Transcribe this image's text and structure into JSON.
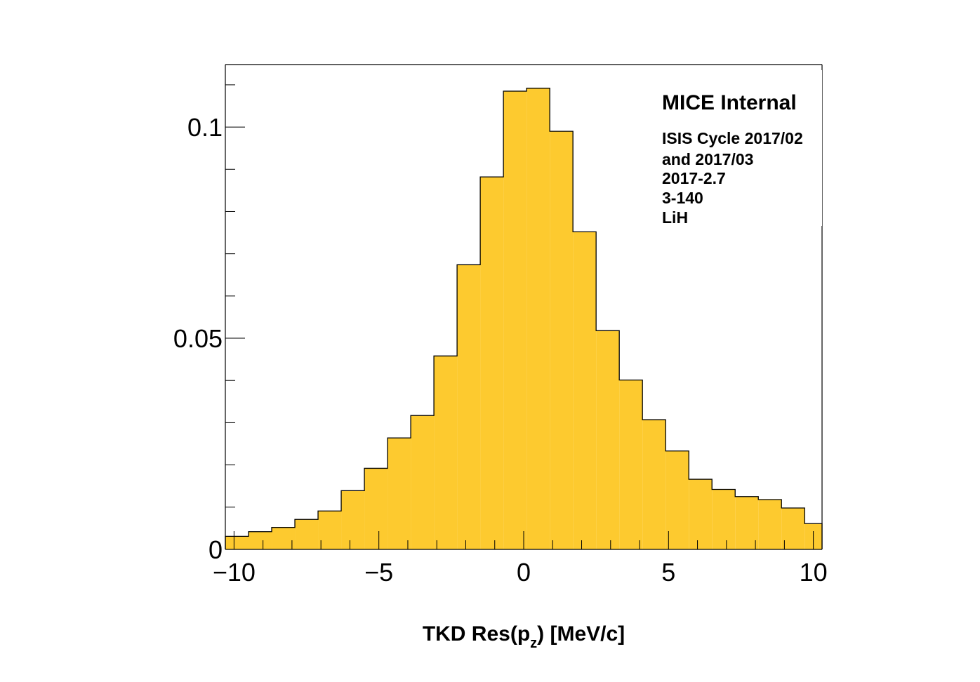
{
  "chart_data": {
    "type": "bar",
    "histogram": true,
    "xlabel": "TKD Res(p_z) [MeV/c]",
    "xlabel_parts": {
      "main": "TKD Res(p",
      "sub": "z",
      "tail": ") [MeV/c]"
    },
    "ylabel": "",
    "xlim": [
      -10.3,
      10.3
    ],
    "ylim": [
      0,
      0.1148
    ],
    "x_ticks": [
      -10,
      -5,
      0,
      5,
      10
    ],
    "x_tick_labels": [
      "−10",
      "−5",
      "0",
      "5",
      "10"
    ],
    "y_ticks": [
      0,
      0.05,
      0.1
    ],
    "y_tick_labels": [
      "0",
      "0.05",
      "0.1"
    ],
    "bin_edges": [
      -10.3,
      -9.5,
      -8.7,
      -7.9,
      -7.1,
      -6.3,
      -5.5,
      -4.7,
      -3.9,
      -3.1,
      -2.3,
      -1.5,
      -0.7,
      0.1,
      0.9,
      1.7,
      2.5,
      3.3,
      4.1,
      4.9,
      5.7,
      6.5,
      7.3,
      8.1,
      8.9,
      9.7,
      10.3
    ],
    "values": [
      0.0031,
      0.0042,
      0.0052,
      0.0071,
      0.0091,
      0.0139,
      0.0192,
      0.0264,
      0.0317,
      0.0458,
      0.0674,
      0.0882,
      0.1085,
      0.1092,
      0.099,
      0.0752,
      0.0518,
      0.0401,
      0.0307,
      0.0233,
      0.0166,
      0.0142,
      0.0125,
      0.0118,
      0.0098,
      0.0061
    ],
    "fill_color": "#fdca2f",
    "line_color": "#000000",
    "grid": false
  },
  "annotation": {
    "title": "MICE Internal",
    "lines": [
      "ISIS Cycle 2017/02",
      "and 2017/03",
      "2017-2.7",
      "3-140",
      "LiH"
    ]
  }
}
